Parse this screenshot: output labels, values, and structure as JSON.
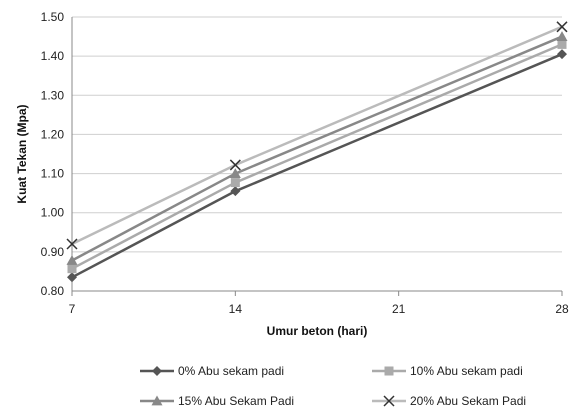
{
  "chart_data": {
    "type": "line",
    "xlabel": "Umur beton (hari)",
    "ylabel": "Kuat Tekan (Mpa)",
    "x": [
      7,
      14,
      28
    ],
    "xlim": [
      7,
      28
    ],
    "xticks": [
      7,
      14,
      21,
      28
    ],
    "ylim": [
      0.8,
      1.5
    ],
    "yticks": [
      "0.80",
      "0.90",
      "1.00",
      "1.10",
      "1.20",
      "1.30",
      "1.40",
      "1.50"
    ],
    "grid": "horizontal",
    "legend_position": "bottom",
    "series": [
      {
        "name": "0% Abu sekam padi",
        "values": [
          0.835,
          1.055,
          1.405
        ],
        "color": "#555555",
        "marker": "diamond"
      },
      {
        "name": "10% Abu sekam padi",
        "values": [
          0.857,
          1.077,
          1.43
        ],
        "color": "#aaaaaa",
        "marker": "square"
      },
      {
        "name": "15% Abu Sekam Padi",
        "values": [
          0.878,
          1.1,
          1.45
        ],
        "color": "#888888",
        "marker": "triangle"
      },
      {
        "name": "20% Abu Sekam Padi",
        "values": [
          0.92,
          1.122,
          1.475
        ],
        "color": "#bbbbbb",
        "marker": "x"
      }
    ]
  }
}
